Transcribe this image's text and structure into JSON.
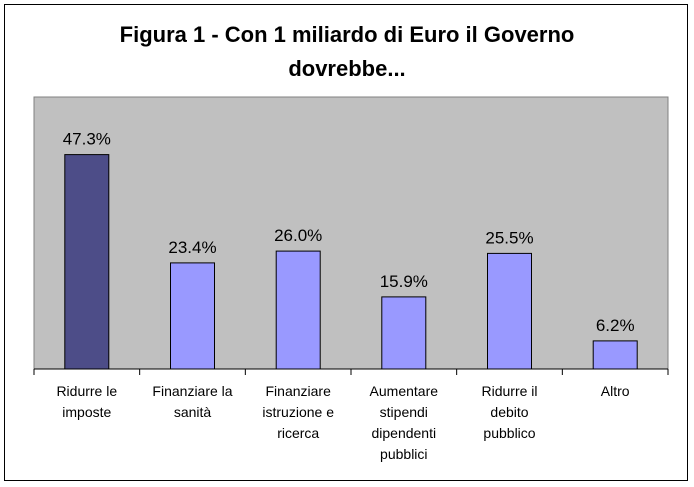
{
  "chart_data": {
    "type": "bar",
    "title": "Figura 1 - Con 1 miliardo di Euro il Governo dovrebbe...",
    "title_lines": [
      "Figura 1 - Con 1 miliardo di Euro il Governo",
      "dovrebbe..."
    ],
    "categories": [
      [
        "Ridurre le",
        "imposte"
      ],
      [
        "Finanziare la",
        "sanità"
      ],
      [
        "Finanziare",
        "istruzione e",
        "ricerca"
      ],
      [
        "Aumentare",
        "stipendi",
        "dipendenti",
        "pubblici"
      ],
      [
        "Ridurre il",
        "debito",
        "pubblico"
      ],
      [
        "Altro"
      ]
    ],
    "values": [
      47.3,
      23.4,
      26.0,
      15.9,
      25.5,
      6.2
    ],
    "value_labels": [
      "47.3%",
      "23.4%",
      "26.0%",
      "15.9%",
      "25.5%",
      "6.2%"
    ],
    "ylim": [
      0,
      60
    ],
    "grid": false,
    "legend": "none",
    "colors": {
      "plot_bg": "#c0c0c0",
      "bar": "#9999ff",
      "bar_highlight": "#4d4d88",
      "bar_edge": "#000000"
    },
    "highlight_index": 0
  }
}
